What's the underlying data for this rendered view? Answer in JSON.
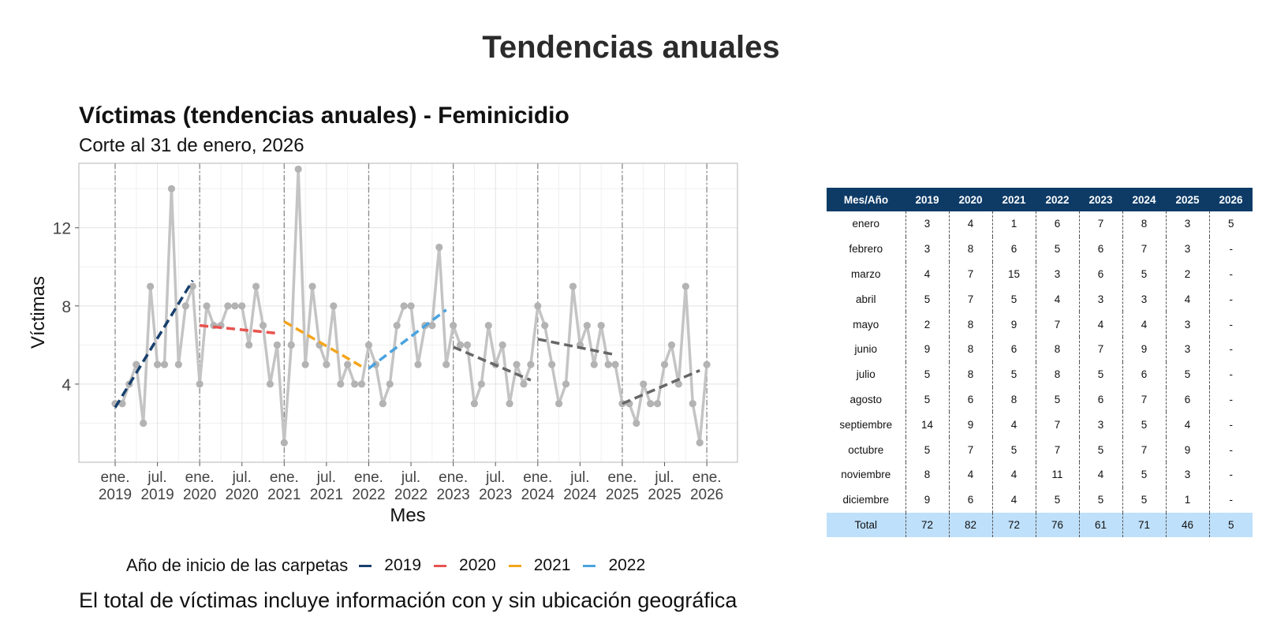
{
  "header": {
    "title": "Tendencias anuales"
  },
  "chart_data": {
    "type": "line",
    "title": "Víctimas (tendencias anuales) - Feminicidio",
    "subtitle": "Corte al 31 de enero, 2026",
    "xlabel": "Mes",
    "ylabel": "Víctimas",
    "ylim": [
      0,
      15.3
    ],
    "yticks": [
      4,
      8,
      12
    ],
    "xticks": [
      {
        "date": "2019-01",
        "label": [
          "ene.",
          "2019"
        ]
      },
      {
        "date": "2019-07",
        "label": [
          "jul.",
          "2019"
        ]
      },
      {
        "date": "2020-01",
        "label": [
          "ene.",
          "2020"
        ]
      },
      {
        "date": "2020-07",
        "label": [
          "jul.",
          "2020"
        ]
      },
      {
        "date": "2021-01",
        "label": [
          "ene.",
          "2021"
        ]
      },
      {
        "date": "2021-07",
        "label": [
          "jul.",
          "2021"
        ]
      },
      {
        "date": "2022-01",
        "label": [
          "ene.",
          "2022"
        ]
      },
      {
        "date": "2022-07",
        "label": [
          "jul.",
          "2022"
        ]
      },
      {
        "date": "2023-01",
        "label": [
          "ene.",
          "2023"
        ]
      },
      {
        "date": "2023-07",
        "label": [
          "jul.",
          "2023"
        ]
      },
      {
        "date": "2024-01",
        "label": [
          "ene.",
          "2024"
        ]
      },
      {
        "date": "2024-07",
        "label": [
          "jul.",
          "2024"
        ]
      },
      {
        "date": "2025-01",
        "label": [
          "ene.",
          "2025"
        ]
      },
      {
        "date": "2025-07",
        "label": [
          "jul.",
          "2025"
        ]
      },
      {
        "date": "2026-01",
        "label": [
          "ene.",
          "2026"
        ]
      }
    ],
    "year_lines": [
      "2019-01",
      "2020-01",
      "2021-01",
      "2022-01",
      "2023-01",
      "2024-01",
      "2025-01",
      "2026-01"
    ],
    "series_color": "#c4c4c4",
    "series": [
      {
        "start": "2019-01",
        "values": [
          3,
          3,
          4,
          5,
          2,
          9,
          5,
          5,
          14,
          5,
          8,
          9,
          4,
          8,
          7,
          7,
          8,
          8,
          8,
          6,
          9,
          7,
          4,
          6,
          1,
          6,
          15,
          5,
          9,
          6,
          5,
          8,
          4,
          5,
          4,
          4,
          6,
          5,
          3,
          4,
          7,
          8,
          8,
          5,
          7,
          7,
          11,
          5,
          7,
          6,
          6,
          3,
          4,
          7,
          5,
          6,
          3,
          5,
          4,
          5,
          8,
          7,
          5,
          3,
          4,
          9,
          6,
          7,
          5,
          7,
          5,
          5,
          3,
          3,
          2,
          4,
          3,
          3,
          5,
          6,
          4,
          9,
          3,
          1,
          5
        ]
      }
    ],
    "trends": [
      {
        "year": "2019",
        "color": "#17406d",
        "start": [
          "2019-01",
          2.8
        ],
        "end": [
          "2019-12",
          9.3
        ]
      },
      {
        "year": "2020",
        "color": "#e8534f",
        "start": [
          "2020-01",
          7.0
        ],
        "end": [
          "2020-12",
          6.6
        ]
      },
      {
        "year": "2021",
        "color": "#f3a51c",
        "start": [
          "2021-01",
          7.2
        ],
        "end": [
          "2021-12",
          4.9
        ]
      },
      {
        "year": "2022",
        "color": "#4aa3df",
        "start": [
          "2022-01",
          4.8
        ],
        "end": [
          "2022-12",
          7.8
        ]
      },
      {
        "year": "",
        "color": "#666666",
        "start": [
          "2023-01",
          5.9
        ],
        "end": [
          "2023-12",
          4.2
        ]
      },
      {
        "year": "",
        "color": "#666666",
        "start": [
          "2024-01",
          6.3
        ],
        "end": [
          "2024-12",
          5.5
        ]
      },
      {
        "year": "",
        "color": "#666666",
        "start": [
          "2025-01",
          3.0
        ],
        "end": [
          "2025-12",
          4.7
        ]
      }
    ]
  },
  "legend": {
    "title": "Año de inicio de las carpetas",
    "items": [
      {
        "label": "2019",
        "color": "#17406d"
      },
      {
        "label": "2020",
        "color": "#e8534f"
      },
      {
        "label": "2021",
        "color": "#f3a51c"
      },
      {
        "label": "2022",
        "color": "#4aa3df"
      }
    ]
  },
  "footnote": "El total de víctimas incluye información con y sin ubicación geográfica",
  "table": {
    "header_color": "#0d3b66",
    "total_color": "#bfe0fb",
    "columns": [
      "Mes/Año",
      "2019",
      "2020",
      "2021",
      "2022",
      "2023",
      "2024",
      "2025",
      "2026"
    ],
    "rows": [
      [
        "enero",
        "3",
        "4",
        "1",
        "6",
        "7",
        "8",
        "3",
        "5"
      ],
      [
        "febrero",
        "3",
        "8",
        "6",
        "5",
        "6",
        "7",
        "3",
        "-"
      ],
      [
        "marzo",
        "4",
        "7",
        "15",
        "3",
        "6",
        "5",
        "2",
        "-"
      ],
      [
        "abril",
        "5",
        "7",
        "5",
        "4",
        "3",
        "3",
        "4",
        "-"
      ],
      [
        "mayo",
        "2",
        "8",
        "9",
        "7",
        "4",
        "4",
        "3",
        "-"
      ],
      [
        "junio",
        "9",
        "8",
        "6",
        "8",
        "7",
        "9",
        "3",
        "-"
      ],
      [
        "julio",
        "5",
        "8",
        "5",
        "8",
        "5",
        "6",
        "5",
        "-"
      ],
      [
        "agosto",
        "5",
        "6",
        "8",
        "5",
        "6",
        "7",
        "6",
        "-"
      ],
      [
        "septiembre",
        "14",
        "9",
        "4",
        "7",
        "3",
        "5",
        "4",
        "-"
      ],
      [
        "octubre",
        "5",
        "7",
        "5",
        "7",
        "5",
        "7",
        "9",
        "-"
      ],
      [
        "noviembre",
        "8",
        "4",
        "4",
        "11",
        "4",
        "5",
        "3",
        "-"
      ],
      [
        "diciembre",
        "9",
        "6",
        "4",
        "5",
        "5",
        "5",
        "1",
        "-"
      ]
    ],
    "total": [
      "Total",
      "72",
      "82",
      "72",
      "76",
      "61",
      "71",
      "46",
      "5"
    ]
  }
}
